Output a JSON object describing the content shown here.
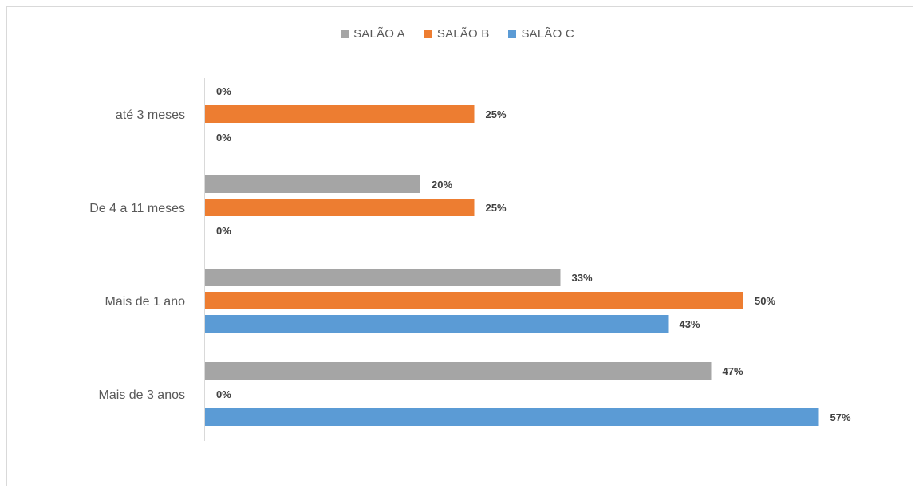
{
  "chart_data": {
    "type": "bar",
    "orientation": "horizontal",
    "categories": [
      "até 3 meses",
      "De 4 a 11 meses",
      "Mais de 1 ano",
      "Mais de 3 anos"
    ],
    "series": [
      {
        "name": "SALÃO A",
        "color": "#a5a5a5",
        "values": [
          0,
          20,
          33,
          47
        ],
        "labels": [
          "0%",
          "20%",
          "33%",
          "47%"
        ]
      },
      {
        "name": "SALÃO B",
        "color": "#ed7d31",
        "values": [
          25,
          25,
          50,
          0
        ],
        "labels": [
          "25%",
          "25%",
          "50%",
          "0%"
        ]
      },
      {
        "name": "SALÃO C",
        "color": "#5b9bd5",
        "values": [
          0,
          0,
          43,
          57
        ],
        "labels": [
          "0%",
          "0%",
          "43%",
          "57%"
        ]
      }
    ],
    "xlim": [
      0,
      60
    ],
    "grid": false,
    "legend_position": "top"
  }
}
